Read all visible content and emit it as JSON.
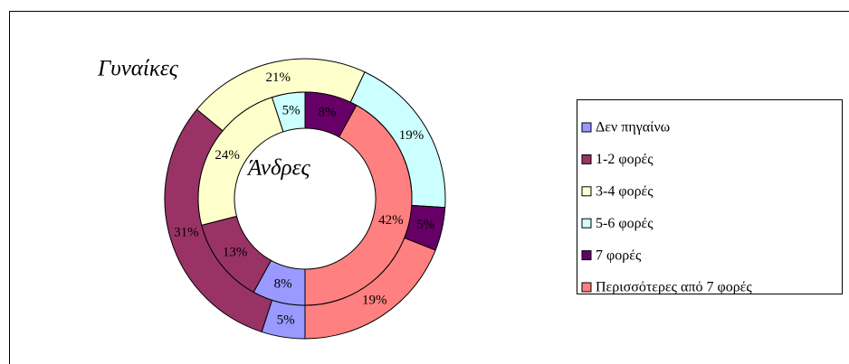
{
  "chart_data": {
    "type": "doughnut",
    "categories": [
      "Δεν πηγαίνω",
      "1-2 φορές",
      "3-4 φορές",
      "5-6 φορές",
      "7 φορές",
      "Περισσότερες από 7 φορές"
    ],
    "colors": [
      "#9999ff",
      "#993366",
      "#ffffcc",
      "#ccffff",
      "#660066",
      "#ff8080"
    ],
    "start_angle": 180,
    "series": [
      {
        "name": "Γυναίκες",
        "values": [
          5,
          31,
          21,
          19,
          5,
          19
        ],
        "value_labels": [
          "5%",
          "31%",
          "21%",
          "19%",
          "5%",
          "19%"
        ]
      },
      {
        "name": "Άνδρες",
        "values": [
          8,
          13,
          24,
          5,
          8,
          42
        ],
        "value_labels": [
          "8%",
          "13%",
          "24%",
          "5%",
          "8%",
          "42%"
        ]
      }
    ],
    "legend": "right"
  }
}
